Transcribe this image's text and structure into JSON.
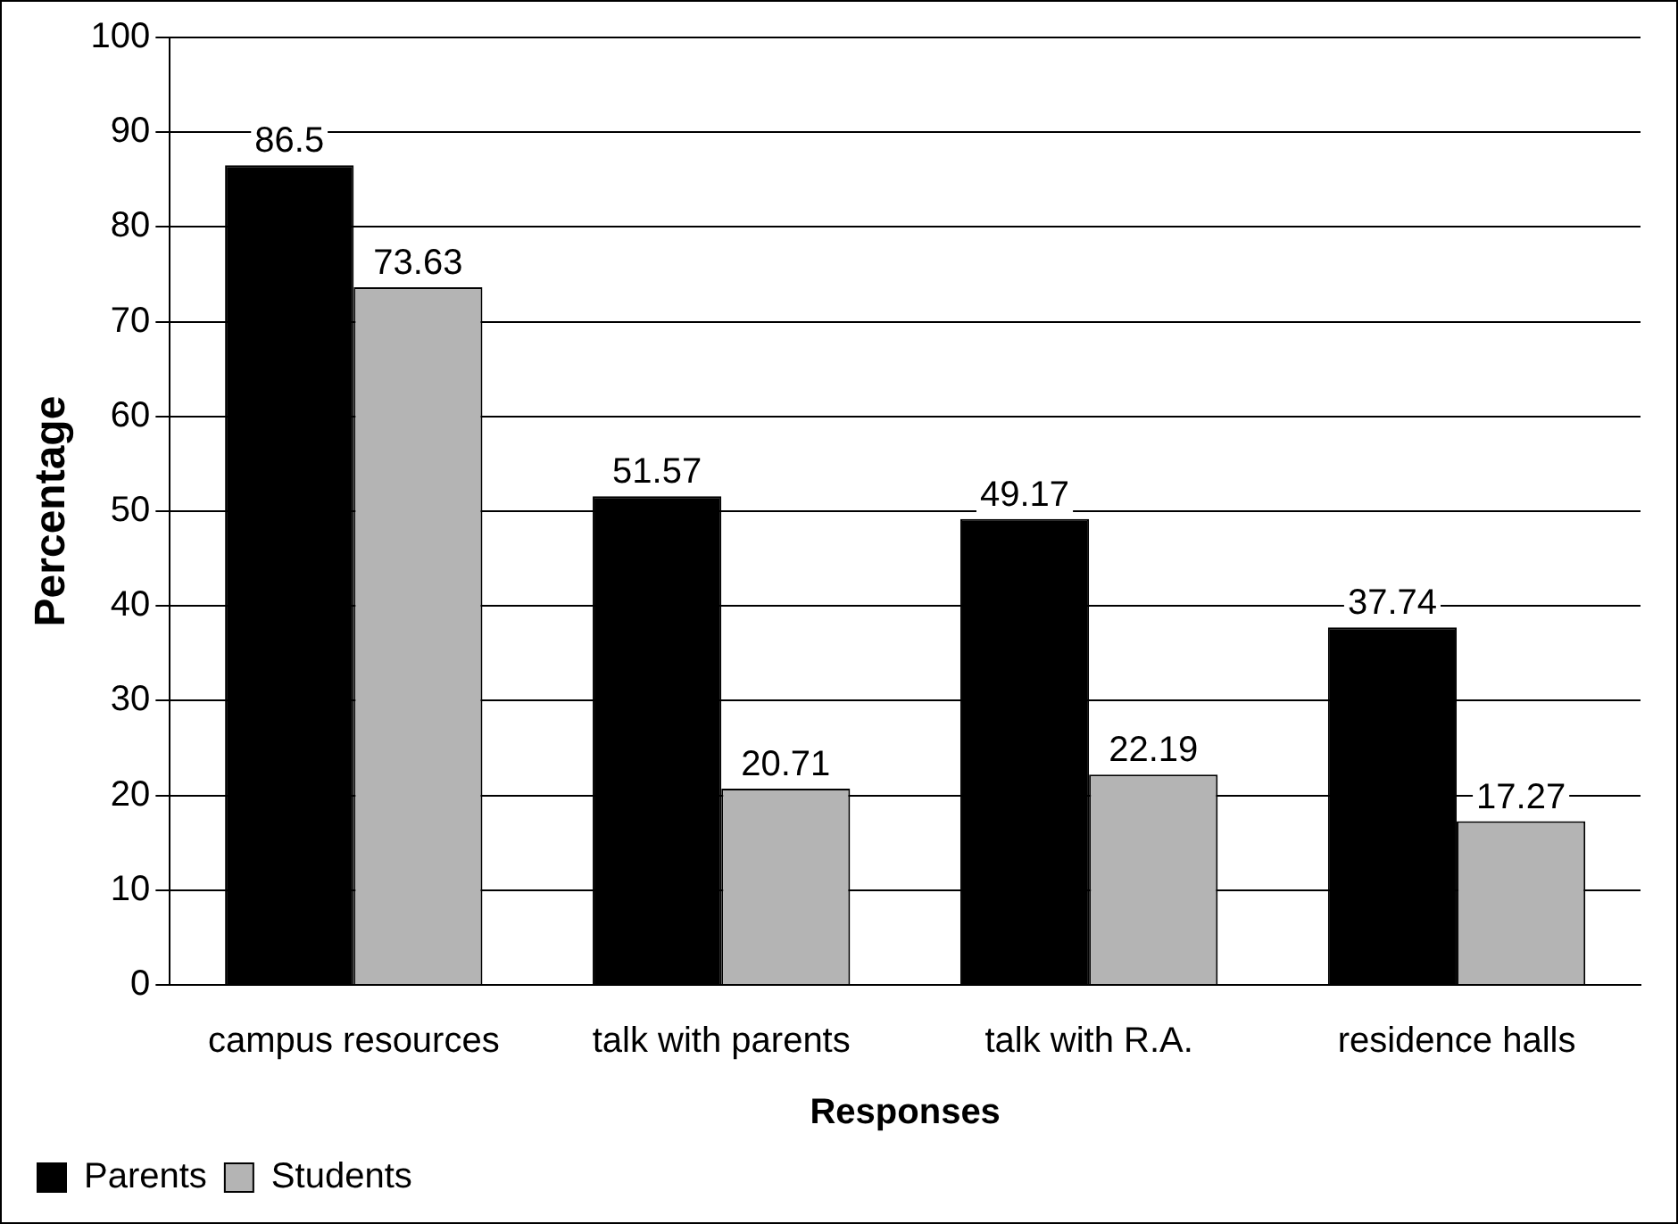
{
  "chart_data": {
    "type": "bar",
    "xlabel": "Responses",
    "ylabel": "Percentage",
    "categories": [
      "campus resources",
      "talk with parents",
      "talk with R.A.",
      "residence halls"
    ],
    "series": [
      {
        "name": "Parents",
        "color": "#000000",
        "values": [
          86.5,
          51.57,
          49.17,
          37.74
        ]
      },
      {
        "name": "Students",
        "color": "#b4b4b4",
        "values": [
          73.63,
          20.71,
          22.19,
          17.27
        ]
      }
    ],
    "ylim": [
      0,
      100
    ],
    "yticks": [
      0,
      10,
      20,
      30,
      40,
      50,
      60,
      70,
      80,
      90,
      100
    ],
    "grid": "y",
    "legend": "bottom left",
    "data_labels": true
  }
}
